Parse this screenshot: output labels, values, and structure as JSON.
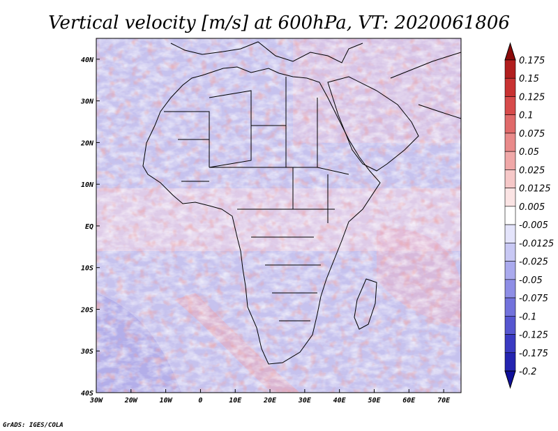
{
  "figure": {
    "title": "Vertical velocity [m/s] at 600hPa, VT: 2020061806",
    "credit": "GrADS: IGES/COLA",
    "map_extent": {
      "lon_min": -30,
      "lon_max": 75,
      "lat_min": -40,
      "lat_max": 45
    },
    "lon_ticks": [
      {
        "value": -30,
        "label": "30W"
      },
      {
        "value": -20,
        "label": "20W"
      },
      {
        "value": -10,
        "label": "10W"
      },
      {
        "value": 0,
        "label": "0"
      },
      {
        "value": 10,
        "label": "10E"
      },
      {
        "value": 20,
        "label": "20E"
      },
      {
        "value": 30,
        "label": "30E"
      },
      {
        "value": 40,
        "label": "40E"
      },
      {
        "value": 50,
        "label": "50E"
      },
      {
        "value": 60,
        "label": "60E"
      },
      {
        "value": 70,
        "label": "70E"
      }
    ],
    "lat_ticks": [
      {
        "value": 40,
        "label": "40N"
      },
      {
        "value": 30,
        "label": "30N"
      },
      {
        "value": 20,
        "label": "20N"
      },
      {
        "value": 10,
        "label": "10N"
      },
      {
        "value": 0,
        "label": "EQ"
      },
      {
        "value": -10,
        "label": "10S"
      },
      {
        "value": -20,
        "label": "20S"
      },
      {
        "value": -30,
        "label": "30S"
      },
      {
        "value": -40,
        "label": "40S"
      }
    ],
    "colorbar": {
      "labels": [
        "0.175",
        "0.15",
        "0.125",
        "0.1",
        "0.075",
        "0.05",
        "0.025",
        "0.0125",
        "0.005",
        "-0.005",
        "-0.0125",
        "-0.025",
        "-0.05",
        "-0.075",
        "-0.1",
        "-0.125",
        "-0.175",
        "-0.2"
      ],
      "colors": [
        "#8b0a0a",
        "#b11e1e",
        "#c83232",
        "#d74b4b",
        "#e06a6a",
        "#e98a8a",
        "#f0a8a8",
        "#f6c8c8",
        "#fbe4e4",
        "#ffffff",
        "#e4e4fb",
        "#c8c8f4",
        "#aaaaee",
        "#8e8ee6",
        "#7272dc",
        "#5656d0",
        "#3a3ac2",
        "#2424b0",
        "#10109a"
      ]
    },
    "colors": {
      "sea_base": "#c6c2ee",
      "land_base": "#bcb6e8",
      "border": "#000000"
    }
  }
}
